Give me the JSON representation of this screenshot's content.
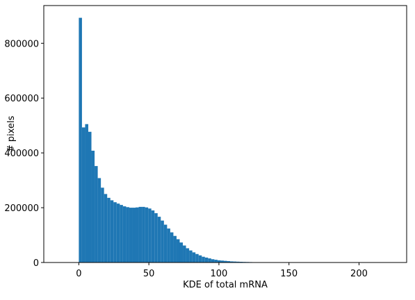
{
  "chart_data": {
    "type": "histogram",
    "xlabel": "KDE of total mRNA",
    "ylabel": "# pixels",
    "color": "#1f77b4",
    "bins": [
      0,
      2.25,
      4.5,
      6.75,
      9,
      11.25,
      13.5,
      15.75,
      18,
      20.25,
      22.5,
      24.75,
      27,
      29.25,
      31.5,
      33.75,
      36,
      38.25,
      40.5,
      42.75,
      45,
      47.25,
      49.5,
      51.75,
      54,
      56.25,
      58.5,
      60.75,
      63,
      65.25,
      67.5,
      69.75,
      72,
      74.25,
      76.5,
      78.75,
      81,
      83.25,
      85.5,
      87.75,
      90,
      92.25,
      94.5,
      96.75,
      99,
      101.25,
      103.5,
      105.75,
      108,
      110.25,
      112.5,
      114.75,
      117,
      119.25,
      121.5,
      123.75,
      126,
      128.25,
      130.5,
      132.75,
      135,
      137.25,
      139.5,
      141.75,
      144,
      146.25,
      148.5,
      150.75,
      153,
      155.25,
      157.5,
      159.75,
      162,
      164.25,
      166.5,
      168.75,
      171,
      173.25,
      175.5,
      177.75,
      180,
      182.25,
      184.5,
      186.75,
      189,
      191.25,
      193.5,
      195.75,
      198,
      200.25,
      202.5,
      204.75,
      207,
      209.25,
      211.5,
      213.75,
      216,
      218.25,
      220.5,
      222.75,
      225
    ],
    "values": [
      893000,
      493000,
      505000,
      477000,
      408000,
      352000,
      308000,
      273000,
      250000,
      236000,
      227000,
      220000,
      215000,
      210000,
      205000,
      202000,
      200000,
      200000,
      201000,
      203000,
      203000,
      201000,
      197000,
      190000,
      180000,
      167000,
      153000,
      138000,
      124000,
      110000,
      97000,
      85000,
      73000,
      62000,
      52000,
      44000,
      37000,
      31000,
      26000,
      21000,
      18000,
      15000,
      12000,
      10000,
      8000,
      7000,
      6000,
      5000,
      4000,
      3500,
      3000,
      2500,
      2100,
      1800,
      1500,
      1200,
      1000,
      850,
      700,
      600,
      500,
      420,
      350,
      300,
      250,
      200,
      170,
      140,
      120,
      100,
      80,
      70,
      60,
      50,
      40,
      35,
      30,
      25,
      20,
      18,
      15,
      12,
      10,
      8,
      7,
      6,
      5,
      4,
      3,
      3,
      2,
      2,
      2,
      1,
      1,
      1,
      1,
      1,
      1,
      1
    ],
    "xlim": [
      -25,
      234
    ],
    "ylim": [
      0,
      937650
    ],
    "xticks": [
      0,
      50,
      100,
      150,
      200
    ],
    "yticks": [
      0,
      200000,
      400000,
      600000,
      800000
    ]
  }
}
